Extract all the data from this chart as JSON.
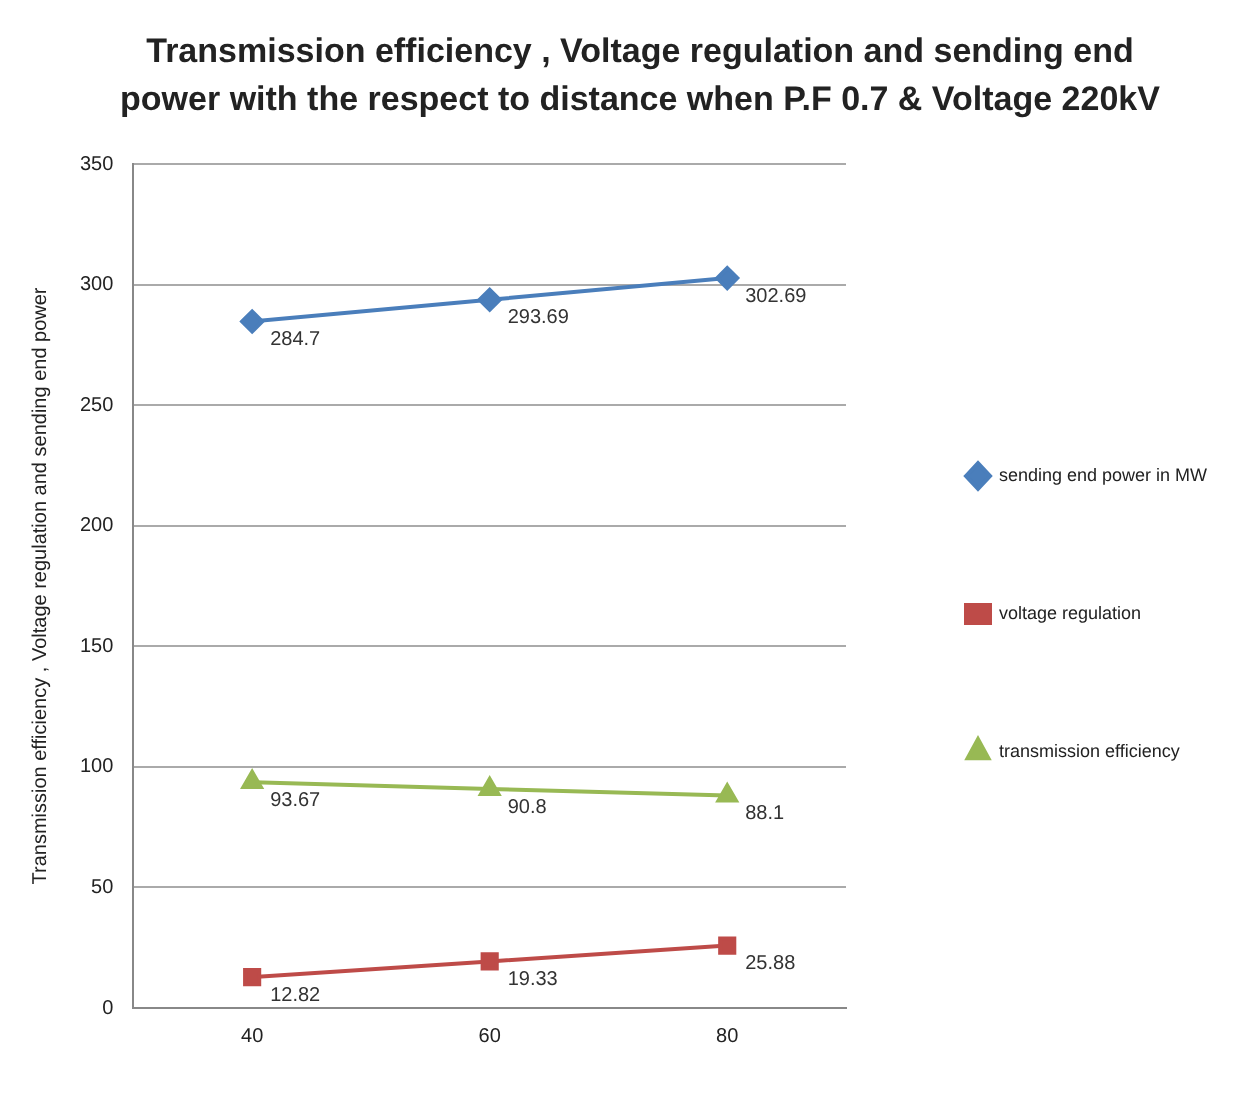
{
  "chart_data": {
    "type": "line",
    "title": "Transmission efficiency , Voltage regulation and sending end power with the respect to distance when P.F 0.7 & Voltage 220kV",
    "ylabel": "Transmission efficiency , Voltage regulation and sending end power",
    "categories": [
      "40",
      "60",
      "80"
    ],
    "series": [
      {
        "name": "sending end power in MW",
        "color": "#4a7ebb",
        "marker": "diamond",
        "values": [
          284.7,
          293.69,
          302.69
        ]
      },
      {
        "name": "voltage regulation",
        "color": "#be4b48",
        "marker": "square",
        "values": [
          12.82,
          19.33,
          25.88
        ]
      },
      {
        "name": "transmission efficiency",
        "color": "#98b954",
        "marker": "triangle",
        "values": [
          93.67,
          90.8,
          88.1
        ]
      }
    ],
    "ylim": [
      0,
      350
    ],
    "yticks": [
      0,
      50,
      100,
      150,
      200,
      250,
      300,
      350
    ],
    "grid": "y",
    "legend": "right",
    "data_labels": true
  }
}
